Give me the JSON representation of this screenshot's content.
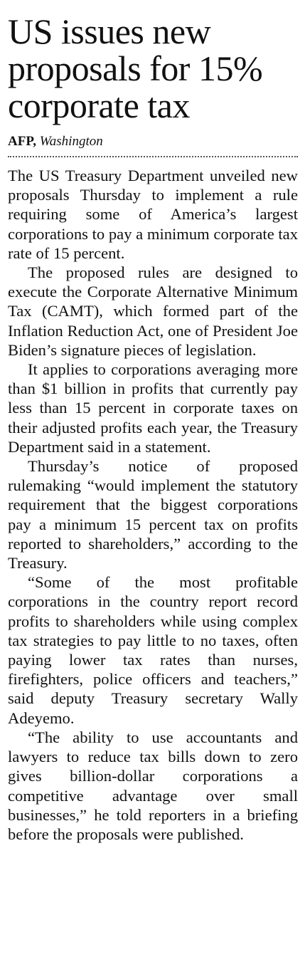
{
  "article": {
    "headline": "US issues new proposals for 15% corporate tax",
    "byline": {
      "agency": "AFP,",
      "place": "Washington"
    },
    "paragraphs": [
      "The US Treasury Department unveiled new proposals Thursday to implement a rule requiring some of America’s largest corporations to pay a minimum corporate tax rate of 15 percent.",
      "The proposed rules are designed to execute the Corporate Alternative Minimum Tax (CAMT), which formed part of the Inflation Reduction Act, one of President Joe Biden’s signature pieces of legislation.",
      "It applies to corporations averaging more than $1 billion in profits that currently pay less than 15 percent in corporate taxes on their adjusted profits each year, the Treasury Department said in a statement.",
      "Thursday’s notice of proposed rulemaking “would implement the statutory requirement that the biggest corporations pay a minimum 15 percent tax on profits reported to shareholders,” according to the Treasury.",
      "“Some of the most profitable corporations in the country report record profits to shareholders while using complex tax strategies to pay little to no taxes, often paying lower tax rates than nurses, firefighters, police officers and teachers,” said deputy Treasury secretary Wally Adeyemo.",
      "“The ability to use accountants and lawyers to reduce tax bills down to zero gives billion-dollar corporations a competitive advantage over small businesses,” he told reporters in a briefing before the proposals were published."
    ]
  }
}
